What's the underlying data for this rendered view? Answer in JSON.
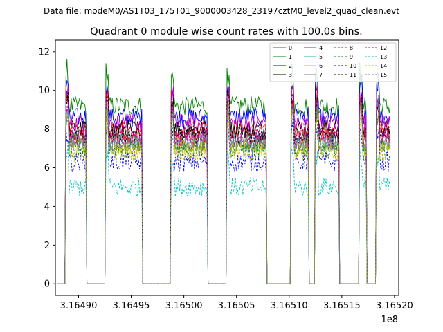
{
  "chart_data": {
    "type": "line",
    "suptitle": "Data file: modeM0/AS1T03_175T01_9000003428_23197cztM0_level2_quad_clean.evt",
    "title": "Quadrant 0 module wise count rates with 100.0s bins.",
    "xlabel": "",
    "ylabel": "",
    "x_offset_label": "1e8",
    "xlim": [
      316487800,
      316520400
    ],
    "ylim": [
      -0.6,
      12.6
    ],
    "xticks": [
      316490000,
      316495000,
      316500000,
      316505000,
      316510000,
      316515000,
      316520000
    ],
    "xtick_labels": [
      "3.16490",
      "3.16495",
      "3.16500",
      "3.16505",
      "3.16510",
      "3.16515",
      "3.16520"
    ],
    "yticks": [
      0,
      2,
      4,
      6,
      8,
      10,
      12
    ],
    "ytick_labels": [
      "0",
      "2",
      "4",
      "6",
      "8",
      "10",
      "12"
    ],
    "legend_position": "top-right",
    "active_segments": [
      [
        316488800,
        316490700
      ],
      [
        316492600,
        316496000
      ],
      [
        316498800,
        316502200
      ],
      [
        316504100,
        316507800
      ],
      [
        316510200,
        316511800
      ],
      [
        316512500,
        316514700
      ],
      [
        316516700,
        316517300
      ],
      [
        316518300,
        316519700
      ]
    ],
    "series": [
      {
        "name": "0",
        "color": "#d62020",
        "dash": "solid",
        "level": 7.6
      },
      {
        "name": "1",
        "color": "#008000",
        "dash": "solid",
        "level": 9.2
      },
      {
        "name": "2",
        "color": "#0000ff",
        "dash": "solid",
        "level": 8.6
      },
      {
        "name": "3",
        "color": "#000000",
        "dash": "solid",
        "level": 8.0
      },
      {
        "name": "4",
        "color": "#c000c0",
        "dash": "solid",
        "level": 8.3
      },
      {
        "name": "5",
        "color": "#20b2aa",
        "dash": "solid",
        "level": 7.3
      },
      {
        "name": "6",
        "color": "#bfbf00",
        "dash": "solid",
        "level": 7.1
      },
      {
        "name": "7",
        "color": "#808080",
        "dash": "solid",
        "level": 7.4
      },
      {
        "name": "8",
        "color": "#ff0000",
        "dash": "dashed",
        "level": 7.9
      },
      {
        "name": "9",
        "color": "#008000",
        "dash": "dashed",
        "level": 7.0
      },
      {
        "name": "10",
        "color": "#0000ff",
        "dash": "dashed",
        "level": 6.3
      },
      {
        "name": "11",
        "color": "#000000",
        "dash": "dashed",
        "level": 7.7
      },
      {
        "name": "12",
        "color": "#c000c0",
        "dash": "dashed",
        "level": 7.5
      },
      {
        "name": "13",
        "color": "#00bfbf",
        "dash": "dashed",
        "level": 5.0
      },
      {
        "name": "14",
        "color": "#bfbf00",
        "dash": "dashed",
        "level": 6.8
      },
      {
        "name": "15",
        "color": "#808080",
        "dash": "dashed",
        "level": 7.2
      }
    ]
  }
}
